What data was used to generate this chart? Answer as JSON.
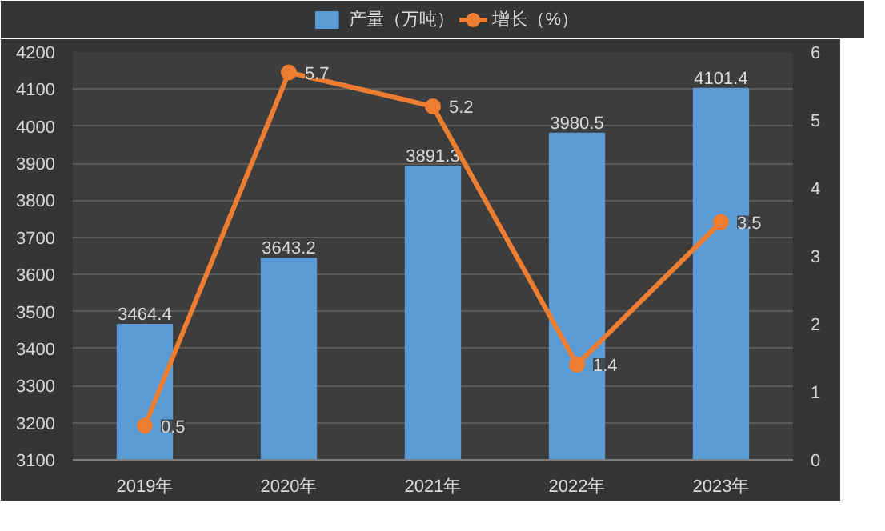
{
  "chart_data": {
    "type": "bar",
    "categories": [
      "2019年",
      "2020年",
      "2021年",
      "2022年",
      "2023年"
    ],
    "series": [
      {
        "name": "产量（万吨）",
        "color": "#5b9bd5",
        "values": [
          3464.4,
          3643.2,
          3891.3,
          3980.5,
          4101.4
        ]
      },
      {
        "name": "增长（%）",
        "type": "line",
        "axis": "y2",
        "color": "#ed7d31",
        "values": [
          0.5,
          5.7,
          5.2,
          1.4,
          3.5
        ]
      }
    ],
    "ylim": [
      3100,
      4200
    ],
    "yticks": [
      3100,
      3200,
      3300,
      3400,
      3500,
      3600,
      3700,
      3800,
      3900,
      4000,
      4100,
      4200
    ],
    "y2lim": [
      0,
      6
    ],
    "y2ticks": [
      0,
      1,
      2,
      3,
      4,
      5,
      6
    ],
    "grid": "y",
    "legend": "top",
    "data_labels": true,
    "marker": "circle",
    "line_style": "solid"
  }
}
